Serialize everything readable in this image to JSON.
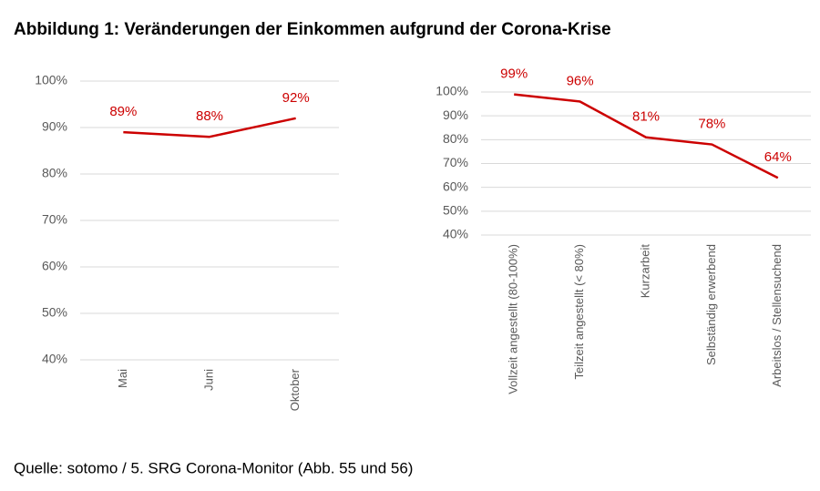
{
  "figure_title": "Abbildung 1: Veränderungen der Einkommen aufgrund der Corona-Krise",
  "source": "Quelle: sotomo / 5. SRG Corona-Monitor (Abb. 55 und 56)",
  "chart_data": [
    {
      "type": "line",
      "categories": [
        "Mai",
        "Juni",
        "Oktober"
      ],
      "series": [
        {
          "color": "#cc0000",
          "values": [
            89,
            88,
            92
          ],
          "value_labels": [
            "89%",
            "88%",
            "92%"
          ]
        }
      ],
      "ylim": [
        40,
        100
      ],
      "yticks": [
        {
          "value": 40,
          "label": "40%"
        },
        {
          "value": 50,
          "label": "50%"
        },
        {
          "value": 60,
          "label": "60%"
        },
        {
          "value": 70,
          "label": "70%"
        },
        {
          "value": 80,
          "label": "80%"
        },
        {
          "value": 90,
          "label": "90%"
        },
        {
          "value": 100,
          "label": "100%"
        }
      ],
      "grid": true
    },
    {
      "type": "line",
      "categories": [
        "Vollzeit angestellt (80-100%)",
        "Teilzeit angestellt (< 80%)",
        "Kurzarbeit",
        "Selbständig erwerbend",
        "Arbeitslos / Stellensuchend"
      ],
      "series": [
        {
          "color": "#cc0000",
          "values": [
            99,
            96,
            81,
            78,
            64
          ],
          "value_labels": [
            "99%",
            "96%",
            "81%",
            "78%",
            "64%"
          ]
        }
      ],
      "ylim": [
        40,
        100
      ],
      "yticks": [
        {
          "value": 40,
          "label": "40%"
        },
        {
          "value": 50,
          "label": "50%"
        },
        {
          "value": 60,
          "label": "60%"
        },
        {
          "value": 70,
          "label": "70%"
        },
        {
          "value": 80,
          "label": "80%"
        },
        {
          "value": 90,
          "label": "90%"
        },
        {
          "value": 100,
          "label": "100%"
        }
      ],
      "grid": true
    }
  ]
}
